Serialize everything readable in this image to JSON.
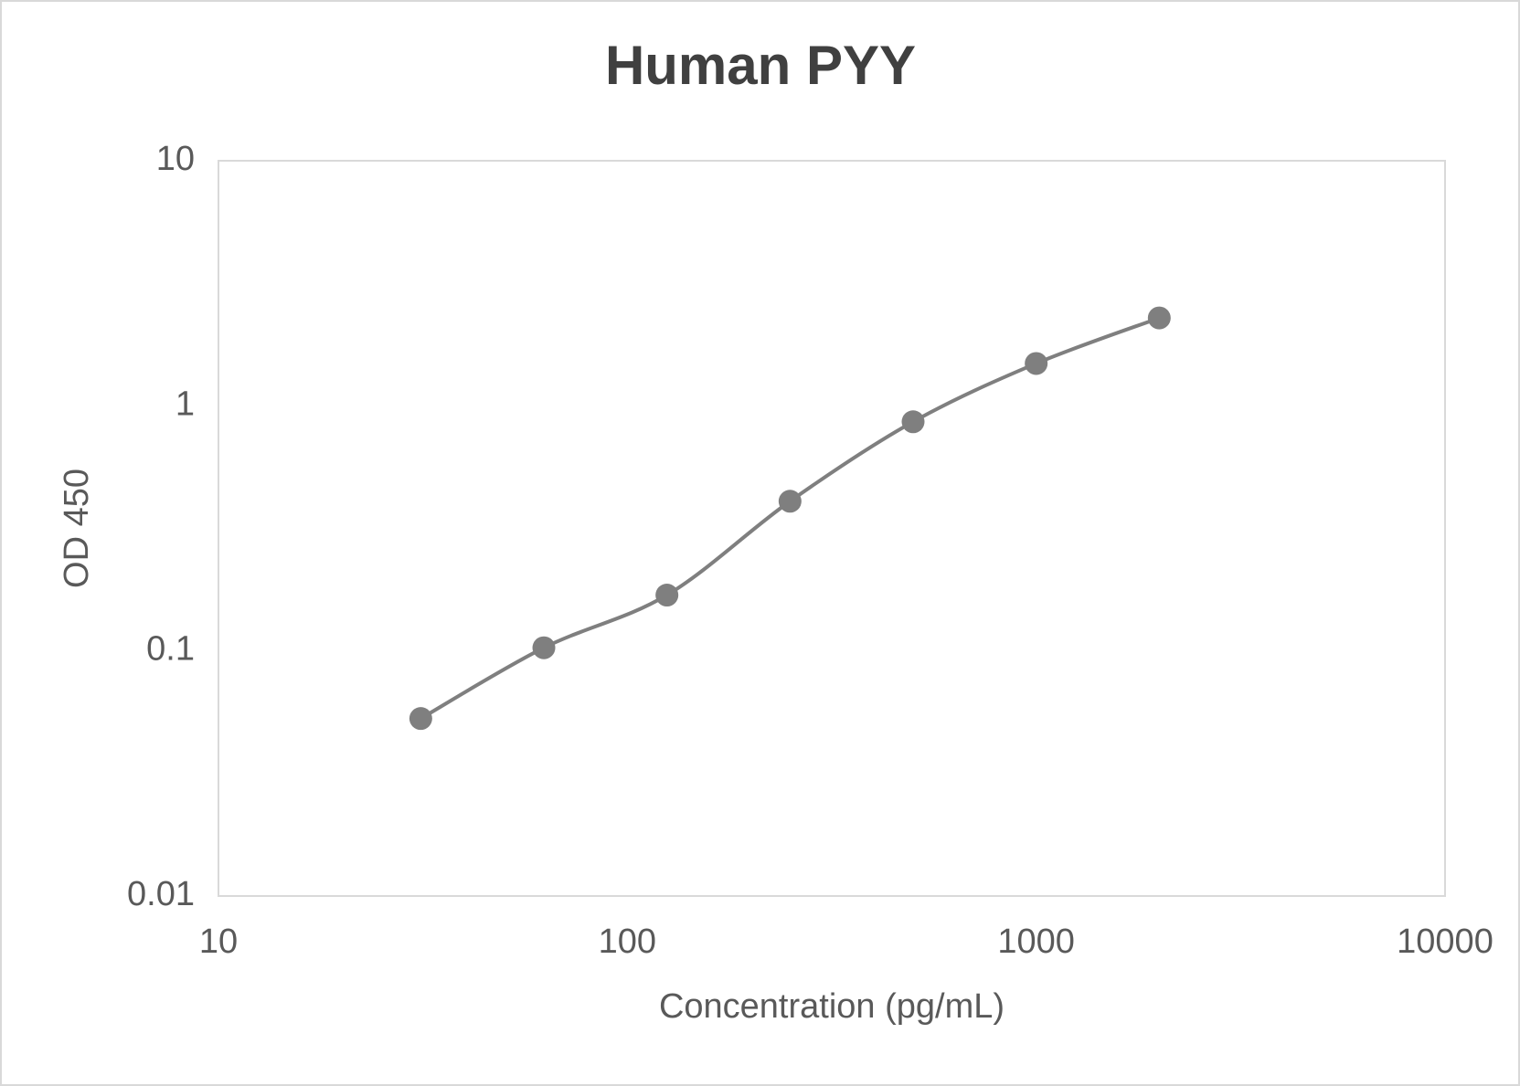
{
  "chart_data": {
    "type": "line",
    "title": "Human PYY",
    "x_label": "Concentration (pg/mL)",
    "y_label": "OD 450",
    "x": [
      31.25,
      62.5,
      125,
      250,
      500,
      1000,
      2000
    ],
    "series": [
      {
        "name": "Human PYY",
        "color": "#7f7f7f",
        "values": [
          0.053,
          0.103,
          0.169,
          0.408,
          0.861,
          1.489,
          2.284
        ]
      }
    ],
    "xlim": [
      10,
      10000
    ],
    "xticks": [
      10,
      100,
      1000,
      10000
    ],
    "ylim": [
      0.01,
      10
    ],
    "yticks": [
      0.01,
      0.1,
      1,
      10
    ],
    "xscale": "log",
    "yscale": "log",
    "grid": false,
    "smooth": true
  }
}
